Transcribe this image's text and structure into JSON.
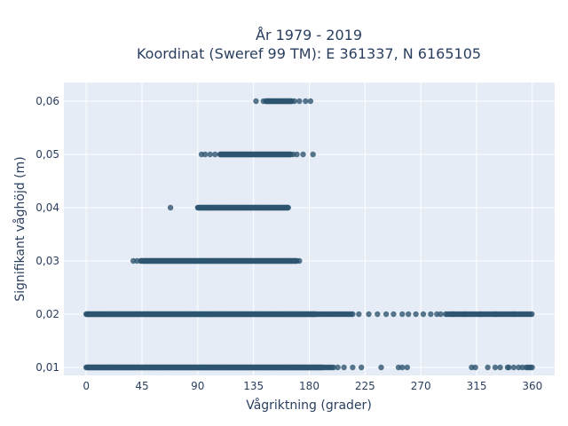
{
  "chart_data": {
    "type": "scatter",
    "title_line1": "År 1979 - 2019",
    "title_line2": "Koordinat (Sweref 99 TM): E 361337, N 6165105",
    "xlabel": "Vågriktning (grader)",
    "ylabel": "Signifikant våghöjd (m)",
    "xlim": [
      -18,
      378
    ],
    "ylim": [
      0.0085,
      0.0635
    ],
    "x_ticks": [
      0,
      45,
      90,
      135,
      180,
      225,
      270,
      315,
      360
    ],
    "x_tick_labels": [
      "0",
      "45",
      "90",
      "135",
      "180",
      "225",
      "270",
      "315",
      "360"
    ],
    "y_ticks": [
      0.01,
      0.02,
      0.03,
      0.04,
      0.05,
      0.06
    ],
    "y_tick_labels": [
      "0,01",
      "0,02",
      "0,03",
      "0,04",
      "0,05",
      "0,06"
    ],
    "grid": true,
    "colors": {
      "marker": "#2e5570",
      "plot_bg": "#e5ecf6",
      "grid": "#ffffff",
      "text": "#2a3f5f"
    },
    "bands": [
      {
        "y": 0.06,
        "dense_ranges": [
          [
            145,
            166
          ]
        ],
        "points": [
          137,
          143,
          147,
          168,
          172,
          177,
          181
        ]
      },
      {
        "y": 0.05,
        "dense_ranges": [
          [
            108,
            165
          ]
        ],
        "points": [
          93,
          96,
          100,
          104,
          167,
          170,
          175,
          183
        ]
      },
      {
        "y": 0.04,
        "dense_ranges": [
          [
            90,
            163
          ]
        ],
        "points": [
          68
        ]
      },
      {
        "y": 0.03,
        "dense_ranges": [
          [
            44,
            170
          ]
        ],
        "points": [
          38,
          41,
          172
        ]
      },
      {
        "y": 0.02,
        "dense_ranges": [
          [
            0,
            185
          ],
          [
            185,
            215
          ],
          [
            290,
            360
          ]
        ],
        "points": [
          220,
          228,
          235,
          242,
          248,
          255,
          260,
          266,
          272,
          278,
          283,
          286,
          296,
          305,
          318,
          330,
          345
        ]
      },
      {
        "y": 0.01,
        "dense_ranges": [
          [
            0,
            190
          ],
          [
            190,
            200
          ],
          [
            355,
            360
          ]
        ],
        "points": [
          203,
          208,
          215,
          222,
          238,
          252,
          255,
          259,
          311,
          314,
          324,
          330,
          334,
          340,
          341,
          345,
          349,
          352
        ]
      }
    ]
  }
}
